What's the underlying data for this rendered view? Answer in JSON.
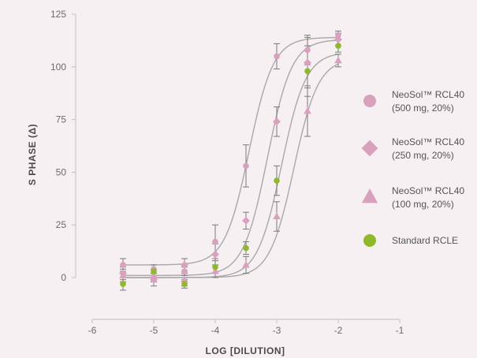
{
  "chart_data": {
    "type": "scatter",
    "title": "",
    "xlabel": "LOG [DILUTION]",
    "ylabel": "S PHASE (Δ)",
    "xlim": [
      -6,
      -1
    ],
    "ylim": [
      0,
      125
    ],
    "x_ticks": [
      -6,
      -5,
      -4,
      -3,
      -2,
      -1
    ],
    "x_tick_labels": [
      "-6",
      "-5",
      "-4",
      "-3",
      "-2",
      "-1"
    ],
    "y_ticks": [
      0,
      25,
      50,
      75,
      100,
      125
    ],
    "y_tick_labels": [
      "0",
      "25",
      "50",
      "75",
      "100",
      "125"
    ],
    "grid": false,
    "legend_position": "right",
    "x": [
      -5.5,
      -5,
      -4.5,
      -4,
      -3.5,
      -3,
      -2.5,
      -2
    ],
    "series": [
      {
        "name": "NeoSol™ RCL40 (500 mg, 20%)",
        "legend_line1": "NeoSol™ RCL40",
        "legend_line2": "(500 mg, 20%)",
        "marker": "circle",
        "color": "#d9a1bd",
        "values": [
          6,
          4,
          3,
          17,
          53,
          105,
          108,
          115
        ],
        "errors": [
          3,
          2,
          2,
          8,
          10,
          6,
          7,
          2
        ],
        "fit": {
          "bottom": 6,
          "top": 114,
          "ec50": -3.45,
          "hill": 2.2
        }
      },
      {
        "name": "NeoSol™ RCL40 (250 mg, 20%)",
        "legend_line1": "NeoSol™ RCL40",
        "legend_line2": "(250 mg, 20%)",
        "marker": "diamond",
        "color": "#d9a1bd",
        "values": [
          2,
          -1,
          6,
          11,
          27,
          74,
          102,
          113
        ],
        "errors": [
          3,
          3,
          3,
          5,
          4,
          7,
          12,
          3
        ],
        "fit": {
          "bottom": 1,
          "top": 113,
          "ec50": -3.15,
          "hill": 2.2
        }
      },
      {
        "name": "NeoSol™ RCL40 (100 mg, 20%)",
        "legend_line1": "NeoSol™ RCL40",
        "legend_line2": "(100 mg, 20%)",
        "marker": "triangle",
        "color": "#d9a1bd",
        "values": [
          1,
          1,
          -1,
          3,
          6,
          29,
          79,
          103
        ],
        "errors": [
          3,
          3,
          3,
          3,
          4,
          7,
          12,
          3
        ],
        "fit": {
          "bottom": 0,
          "top": 104,
          "ec50": -2.72,
          "hill": 2.2
        }
      },
      {
        "name": "Standard RCLE",
        "legend_line1": "Standard RCLE",
        "legend_line2": "",
        "marker": "circle",
        "color": "#8fb82a",
        "values": [
          -3,
          3,
          -3,
          5,
          14,
          46,
          98,
          110
        ],
        "errors": [
          3,
          3,
          2,
          3,
          3,
          7,
          12,
          3
        ],
        "fit": {
          "bottom": 0,
          "top": 107,
          "ec50": -2.92,
          "hill": 2.2
        }
      }
    ]
  }
}
